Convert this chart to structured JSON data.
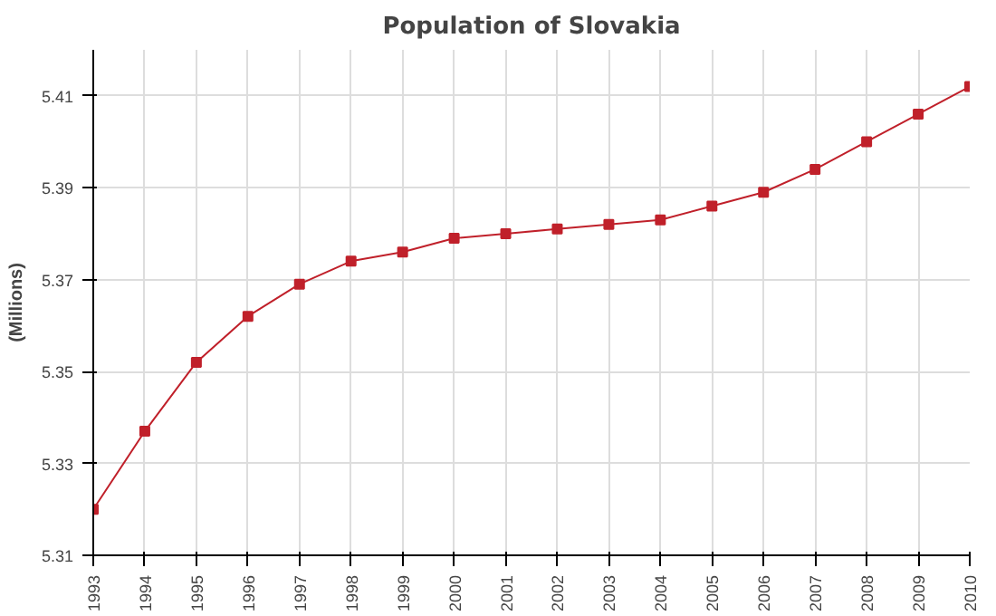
{
  "chart_data": {
    "type": "line",
    "title": "Population of Slovakia",
    "ylabel": "(Millions)",
    "x": [
      1993,
      1994,
      1995,
      1996,
      1997,
      1998,
      1999,
      2000,
      2001,
      2002,
      2003,
      2004,
      2005,
      2006,
      2007,
      2008,
      2009,
      2010
    ],
    "series": [
      {
        "color": "#c0202a",
        "values": [
          5.32,
          5.337,
          5.352,
          5.362,
          5.369,
          5.374,
          5.376,
          5.379,
          5.38,
          5.381,
          5.382,
          5.383,
          5.386,
          5.389,
          5.394,
          5.4,
          5.406,
          5.412
        ]
      }
    ],
    "xlim": [
      1993,
      2010
    ],
    "xticks": [
      1993,
      1994,
      1995,
      1996,
      1997,
      1998,
      1999,
      2000,
      2001,
      2002,
      2003,
      2004,
      2005,
      2006,
      2007,
      2008,
      2009,
      2010
    ],
    "ylim": [
      5.31,
      5.42
    ],
    "yticks": [
      5.31,
      5.33,
      5.35,
      5.37,
      5.39,
      5.41
    ],
    "grid": true,
    "marker": "square",
    "line_style": "solid"
  }
}
